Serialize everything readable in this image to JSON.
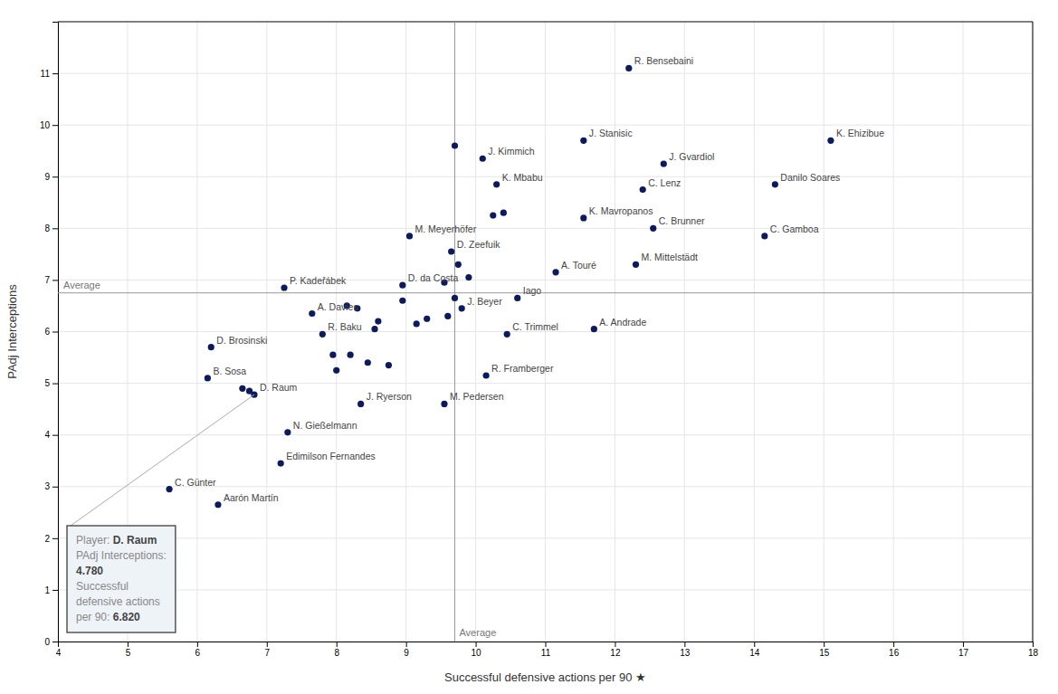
{
  "chart_data": {
    "type": "scatter",
    "x_label": "Successful defensive actions per 90 ★",
    "y_label": "PAdj Interceptions",
    "color": "#0d1a5e",
    "grid": true,
    "xlim": [
      4,
      18
    ],
    "ylim": [
      0,
      12
    ],
    "xticks": [
      4,
      5,
      6,
      7,
      8,
      9,
      10,
      11,
      12,
      13,
      14,
      15,
      16,
      17,
      18
    ],
    "yticks": [
      0,
      1,
      2,
      3,
      4,
      5,
      6,
      7,
      8,
      9,
      10,
      11
    ],
    "labels": [
      "R. Bensebaini",
      "J. Kimmich",
      "J. Stanisic",
      "J. Gvardiol",
      "K. Ehizibue",
      "K. Mbabu",
      "C. Lenz",
      "Danilo Soares",
      "K. Mavropanos",
      "M. Meyerhöfer",
      "C. Brunner",
      "C. Gamboa",
      "D. Zeefuik",
      "M. Mittelstädt",
      "A. Touré",
      "P. Kadeřábek",
      "D. da Costa",
      "Iago",
      "J. Beyer",
      "A. Davies",
      "C. Trimmel",
      "A. Andrade",
      "R. Baku",
      "D. Brosinski",
      "R. Framberger",
      "B. Sosa",
      "D. Raum",
      "J. Ryerson",
      "M. Pedersen",
      "N. Gießelmann",
      "Edimilson Fernandes",
      "C. Günter",
      "Aarón Martín",
      null,
      null,
      null,
      null,
      null,
      null,
      null,
      null,
      null,
      null,
      null,
      null,
      null,
      null,
      null,
      null,
      null,
      null,
      null,
      null,
      null,
      null,
      null
    ],
    "x": [
      12.2,
      10.1,
      11.55,
      12.7,
      15.1,
      10.3,
      12.4,
      14.3,
      11.55,
      9.05,
      12.55,
      14.15,
      9.65,
      12.3,
      11.15,
      7.25,
      8.95,
      10.6,
      9.8,
      7.65,
      10.45,
      11.7,
      7.8,
      6.2,
      10.15,
      6.15,
      6.82,
      8.35,
      9.55,
      7.3,
      7.2,
      5.6,
      6.3,
      9.7,
      10.25,
      10.4,
      9.75,
      9.9,
      9.55,
      9.7,
      9.6,
      9.3,
      9.15,
      8.55,
      8.6,
      8.2,
      8.45,
      8.75,
      8.0,
      7.95,
      6.75,
      6.65,
      8.95,
      8.15,
      8.3
    ],
    "values": [
      11.1,
      9.35,
      9.7,
      9.25,
      9.7,
      8.85,
      8.75,
      8.85,
      8.2,
      7.85,
      8.0,
      7.85,
      7.55,
      7.3,
      7.15,
      6.85,
      6.9,
      6.65,
      6.45,
      6.35,
      5.95,
      6.05,
      5.95,
      5.7,
      5.15,
      5.1,
      4.78,
      4.6,
      4.6,
      4.05,
      3.45,
      2.95,
      2.65,
      9.6,
      8.25,
      8.3,
      7.3,
      7.05,
      6.95,
      6.65,
      6.3,
      6.25,
      6.15,
      6.05,
      6.2,
      5.55,
      5.4,
      5.35,
      5.25,
      5.55,
      4.85,
      4.9,
      6.6,
      6.5,
      6.45
    ],
    "reference_lines": [
      {
        "axis": "y",
        "value": 6.75,
        "label": "Average"
      },
      {
        "axis": "x",
        "value": 9.7,
        "label": "Average"
      }
    ],
    "annotation": {
      "x": 6.82,
      "y": 4.78,
      "lines": [
        {
          "label": "Player: ",
          "value": "D. Raum"
        },
        {
          "label": "PAdj Interceptions:"
        },
        {
          "value": "4.780"
        },
        {
          "label": "Successful"
        },
        {
          "label": "defensive actions"
        },
        {
          "label": "per 90: ",
          "value": "6.820"
        }
      ]
    }
  }
}
